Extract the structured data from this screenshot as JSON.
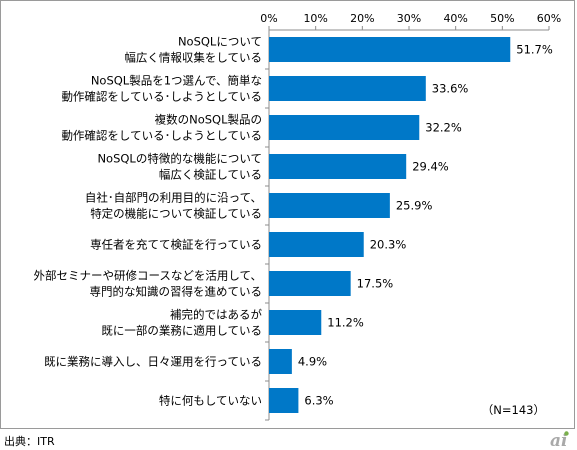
{
  "chart_data": {
    "type": "bar",
    "orientation": "horizontal",
    "categories": [
      [
        "NoSQLについて",
        "幅広く情報収集をしている"
      ],
      [
        "NoSQL製品を1つ選んで、簡単な",
        "動作確認をしている･しようとしている"
      ],
      [
        "複数のNoSQL製品の",
        "動作確認をしている･しようとしている"
      ],
      [
        "NoSQLの特徴的な機能について",
        "幅広く検証している"
      ],
      [
        "自社･自部門の利用目的に沿って、",
        "特定の機能について検証している"
      ],
      [
        "専任者を充てて検証を行っている"
      ],
      [
        "外部セミナーや研修コースなどを活用して、",
        "専門的な知識の習得を進めている"
      ],
      [
        "補完的ではあるが",
        "既に一部の業務に適用している"
      ],
      [
        "既に業務に導入し、日々運用を行っている"
      ],
      [
        "特に何もしていない"
      ]
    ],
    "values": [
      51.7,
      33.6,
      32.2,
      29.4,
      25.9,
      20.3,
      17.5,
      11.2,
      4.9,
      6.3
    ],
    "value_labels": [
      "51.7%",
      "33.6%",
      "32.2%",
      "29.4%",
      "25.9%",
      "20.3%",
      "17.5%",
      "11.2%",
      "4.9%",
      "6.3%"
    ],
    "xlim": [
      0,
      60
    ],
    "x_ticks": [
      0,
      10,
      20,
      30,
      40,
      50,
      60
    ],
    "x_tick_labels": [
      "0%",
      "10%",
      "20%",
      "30%",
      "40%",
      "50%",
      "60%"
    ],
    "axis_position": "top",
    "grid": false,
    "bar_color": "#0078c8",
    "note": "（N=143）"
  },
  "source": "出典：ITR",
  "logo": {
    "text": "ai",
    "color": "#a9a9a9",
    "dot_color": "#7ab04c"
  }
}
